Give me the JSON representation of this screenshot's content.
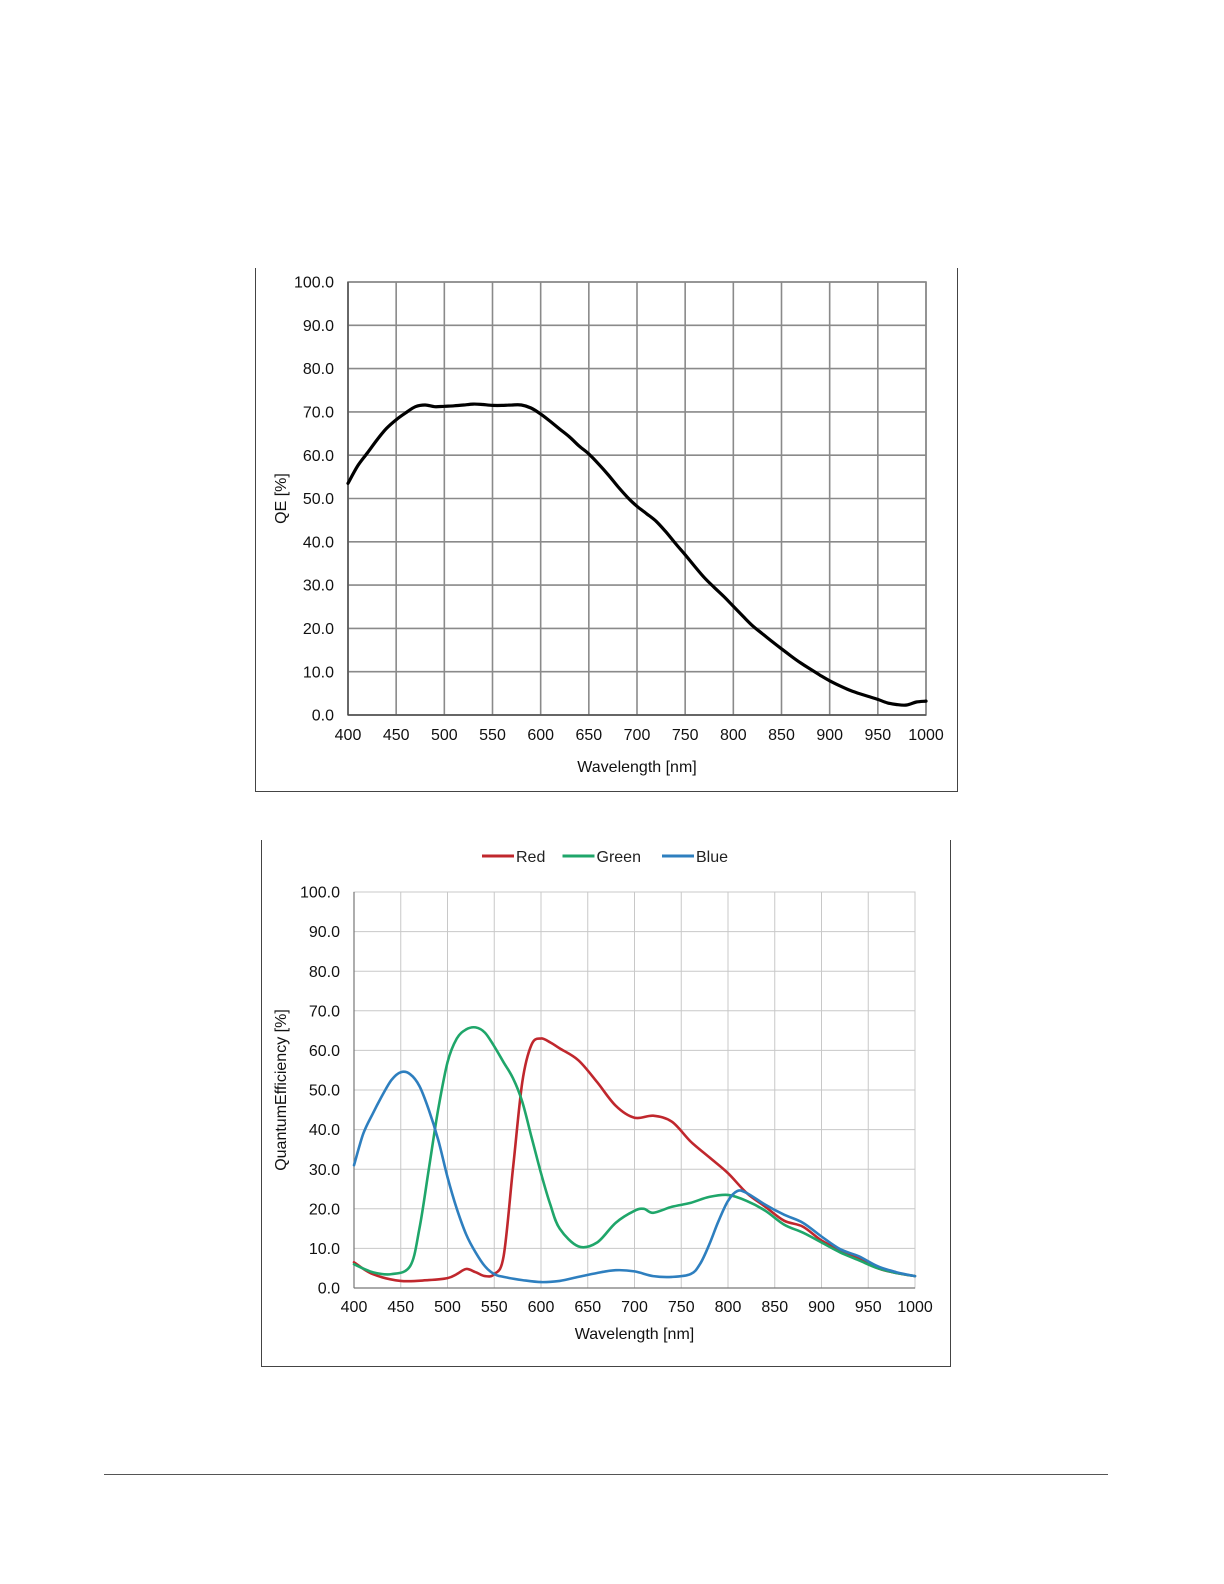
{
  "chart_data": [
    {
      "type": "line",
      "title": "",
      "xlabel": "Wavelength [nm]",
      "ylabel": "QE [%]",
      "xlim": [
        400,
        1000
      ],
      "ylim": [
        0,
        100
      ],
      "xticks": [
        400,
        450,
        500,
        550,
        600,
        650,
        700,
        750,
        800,
        850,
        900,
        950,
        1000
      ],
      "yticks": [
        0,
        10,
        20,
        30,
        40,
        50,
        60,
        70,
        80,
        90,
        100
      ],
      "ytick_labels": [
        "0.0",
        "10.0",
        "20.0",
        "30.0",
        "40.0",
        "50.0",
        "60.0",
        "70.0",
        "80.0",
        "90.0",
        "100.0"
      ],
      "grid": true,
      "legend": "none",
      "series": [
        {
          "color": "#000000",
          "x": [
            400,
            410,
            420,
            430,
            440,
            450,
            460,
            470,
            480,
            490,
            500,
            510,
            520,
            530,
            540,
            550,
            560,
            570,
            580,
            590,
            600,
            610,
            620,
            630,
            640,
            650,
            660,
            670,
            680,
            690,
            700,
            710,
            720,
            730,
            740,
            750,
            760,
            770,
            780,
            790,
            800,
            810,
            820,
            830,
            840,
            850,
            860,
            870,
            880,
            890,
            900,
            910,
            920,
            930,
            940,
            950,
            960,
            970,
            980,
            990,
            1000
          ],
          "y": [
            53.5,
            57.5,
            60.5,
            63.5,
            66.2,
            68.2,
            69.8,
            71.2,
            71.6,
            71.2,
            71.3,
            71.4,
            71.6,
            71.8,
            71.7,
            71.5,
            71.5,
            71.6,
            71.6,
            70.9,
            69.5,
            67.8,
            66.0,
            64.2,
            62.1,
            60.3,
            58.0,
            55.5,
            52.8,
            50.3,
            48.2,
            46.5,
            44.7,
            42.3,
            39.6,
            37.0,
            34.3,
            31.7,
            29.5,
            27.4,
            25.1,
            22.8,
            20.6,
            18.8,
            17.0,
            15.3,
            13.6,
            12.0,
            10.6,
            9.2,
            7.9,
            6.8,
            5.8,
            5.0,
            4.3,
            3.6,
            2.8,
            2.4,
            2.3,
            3.0,
            3.2
          ]
        }
      ]
    },
    {
      "type": "line",
      "title": "",
      "xlabel": "Wavelength [nm]",
      "ylabel": "QuantumEfficiency [%]",
      "xlim": [
        400,
        1000
      ],
      "ylim": [
        0,
        100
      ],
      "xticks": [
        400,
        450,
        500,
        550,
        600,
        650,
        700,
        750,
        800,
        850,
        900,
        950,
        1000
      ],
      "yticks": [
        0,
        10,
        20,
        30,
        40,
        50,
        60,
        70,
        80,
        90,
        100
      ],
      "ytick_labels": [
        "0.0",
        "10.0",
        "20.0",
        "30.0",
        "40.0",
        "50.0",
        "60.0",
        "70.0",
        "80.0",
        "90.0",
        "100.0"
      ],
      "grid": true,
      "legend": "top",
      "series": [
        {
          "name": "Red",
          "color": "#c0272d",
          "x": [
            400,
            420,
            450,
            480,
            500,
            510,
            520,
            530,
            540,
            550,
            560,
            570,
            580,
            590,
            600,
            610,
            620,
            640,
            660,
            680,
            700,
            720,
            740,
            760,
            780,
            800,
            820,
            840,
            860,
            880,
            900,
            920,
            940,
            960,
            980,
            1000
          ],
          "y": [
            6.5,
            3.5,
            1.8,
            2.0,
            2.5,
            3.5,
            4.8,
            4.0,
            3.0,
            3.5,
            8.0,
            30.0,
            52.0,
            61.5,
            63.0,
            62.0,
            60.5,
            57.5,
            52.0,
            46.0,
            43.0,
            43.5,
            42.0,
            37.0,
            33.0,
            29.0,
            24.0,
            20.5,
            17.0,
            15.5,
            12.0,
            9.5,
            7.5,
            5.0,
            3.8,
            3.0
          ]
        },
        {
          "name": "Green",
          "color": "#1fa66a",
          "x": [
            400,
            420,
            440,
            460,
            470,
            480,
            490,
            500,
            510,
            520,
            530,
            540,
            550,
            560,
            570,
            580,
            590,
            600,
            610,
            620,
            640,
            660,
            680,
            700,
            710,
            720,
            740,
            760,
            780,
            800,
            820,
            840,
            860,
            880,
            900,
            920,
            940,
            960,
            980,
            1000
          ],
          "y": [
            6.0,
            4.0,
            3.5,
            5.5,
            15.0,
            30.0,
            45.0,
            57.0,
            63.0,
            65.3,
            65.8,
            64.5,
            61.0,
            57.0,
            53.0,
            47.0,
            38.0,
            29.0,
            21.0,
            15.0,
            10.5,
            11.5,
            16.5,
            19.5,
            20.0,
            19.0,
            20.5,
            21.5,
            23.0,
            23.5,
            22.0,
            19.5,
            16.0,
            14.0,
            11.5,
            9.0,
            7.0,
            5.0,
            3.8,
            3.0
          ]
        },
        {
          "name": "Blue",
          "color": "#2e7fbf",
          "x": [
            400,
            410,
            420,
            430,
            440,
            450,
            460,
            470,
            480,
            490,
            500,
            510,
            520,
            530,
            540,
            550,
            560,
            580,
            600,
            620,
            640,
            660,
            680,
            700,
            720,
            740,
            760,
            770,
            780,
            790,
            800,
            810,
            820,
            840,
            860,
            880,
            900,
            920,
            940,
            960,
            980,
            1000
          ],
          "y": [
            31.0,
            39.0,
            44.0,
            48.5,
            52.5,
            54.5,
            54.0,
            51.0,
            45.0,
            37.5,
            28.0,
            20.0,
            13.5,
            9.0,
            5.5,
            3.5,
            2.8,
            2.0,
            1.5,
            1.8,
            2.8,
            3.8,
            4.5,
            4.2,
            3.0,
            2.8,
            3.5,
            6.0,
            11.0,
            17.0,
            22.0,
            24.5,
            24.0,
            21.0,
            18.5,
            16.5,
            13.0,
            9.8,
            8.0,
            5.5,
            4.0,
            3.0
          ]
        }
      ]
    }
  ]
}
